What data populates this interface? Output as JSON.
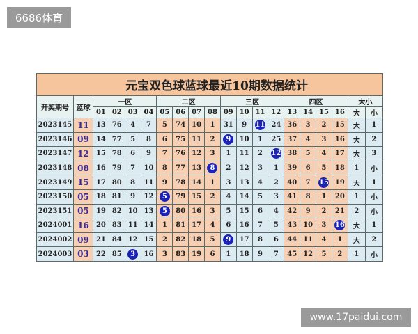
{
  "watermark_top": "6686体育",
  "watermark_bottom": "www.17paidui.com",
  "title": "元宝双色球蓝球最近10期数据统计",
  "headers": {
    "issue": "开奖期号",
    "blue": "蓝球",
    "zones": [
      "一区",
      "二区",
      "三区",
      "四区"
    ],
    "size": "大小",
    "cols": [
      "01",
      "02",
      "03",
      "04",
      "05",
      "06",
      "07",
      "08",
      "09",
      "10",
      "11",
      "12",
      "13",
      "14",
      "15",
      "16",
      "大",
      "小"
    ]
  },
  "colors": {
    "blue_zone": "#dceaf2",
    "peach_zone": "#f7cfb3",
    "title_bg": "#f6c59e",
    "ball": "#1a22b8"
  },
  "rows": [
    {
      "issue": "2023145",
      "blue": "11",
      "ball_col": 10,
      "cells": [
        "13",
        "76",
        "4",
        "7",
        "5",
        "74",
        "10",
        "1",
        "31",
        "9",
        "11",
        "24",
        "36",
        "3",
        "2",
        "15",
        "大",
        "1"
      ]
    },
    {
      "issue": "2023146",
      "blue": "09",
      "ball_col": 8,
      "cells": [
        "14",
        "77",
        "5",
        "8",
        "6",
        "75",
        "11",
        "2",
        "9",
        "10",
        "1",
        "25",
        "37",
        "4",
        "3",
        "16",
        "大",
        "2"
      ]
    },
    {
      "issue": "2023147",
      "blue": "12",
      "ball_col": 11,
      "cells": [
        "15",
        "78",
        "6",
        "9",
        "7",
        "76",
        "12",
        "3",
        "1",
        "11",
        "2",
        "12",
        "38",
        "5",
        "4",
        "17",
        "大",
        "3"
      ]
    },
    {
      "issue": "2023148",
      "blue": "08",
      "ball_col": 7,
      "cells": [
        "16",
        "79",
        "7",
        "10",
        "8",
        "77",
        "13",
        "8",
        "2",
        "12",
        "3",
        "1",
        "39",
        "6",
        "5",
        "18",
        "1",
        "小"
      ]
    },
    {
      "issue": "2023149",
      "blue": "15",
      "ball_col": 14,
      "cells": [
        "17",
        "80",
        "8",
        "11",
        "9",
        "78",
        "14",
        "1",
        "3",
        "13",
        "4",
        "2",
        "40",
        "7",
        "15",
        "19",
        "大",
        "1"
      ]
    },
    {
      "issue": "2023150",
      "blue": "05",
      "ball_col": 4,
      "cells": [
        "18",
        "81",
        "9",
        "12",
        "5",
        "79",
        "15",
        "2",
        "4",
        "14",
        "5",
        "3",
        "41",
        "8",
        "1",
        "20",
        "1",
        "小"
      ]
    },
    {
      "issue": "2023151",
      "blue": "05",
      "ball_col": 4,
      "cells": [
        "19",
        "82",
        "10",
        "13",
        "5",
        "80",
        "16",
        "3",
        "5",
        "15",
        "6",
        "4",
        "42",
        "9",
        "2",
        "21",
        "2",
        "小"
      ]
    },
    {
      "issue": "2024001",
      "blue": "16",
      "ball_col": 15,
      "cells": [
        "20",
        "83",
        "11",
        "14",
        "1",
        "81",
        "17",
        "4",
        "6",
        "16",
        "7",
        "5",
        "43",
        "10",
        "3",
        "16",
        "大",
        "1"
      ]
    },
    {
      "issue": "2024002",
      "blue": "09",
      "ball_col": 8,
      "cells": [
        "21",
        "84",
        "12",
        "15",
        "2",
        "82",
        "18",
        "5",
        "9",
        "17",
        "8",
        "6",
        "44",
        "11",
        "4",
        "1",
        "大",
        "2"
      ]
    },
    {
      "issue": "2024003",
      "blue": "03",
      "ball_col": 2,
      "cells": [
        "22",
        "85",
        "3",
        "16",
        "3",
        "83",
        "19",
        "6",
        "1",
        "18",
        "9",
        "7",
        "45",
        "12",
        "5",
        "2",
        "1",
        "小"
      ]
    }
  ]
}
